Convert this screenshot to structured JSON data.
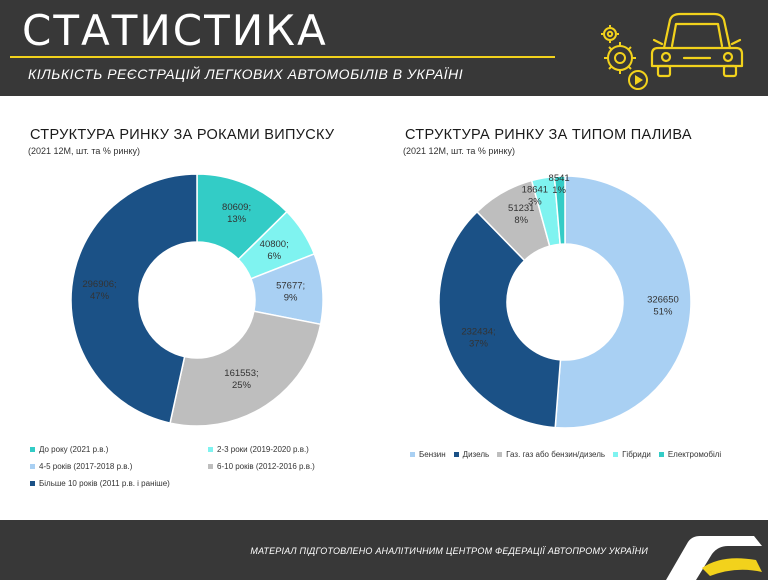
{
  "header": {
    "title": "СТАТИСТИКА",
    "subtitle": "КІЛЬКІСТЬ РЕЄСТРАЦІЙ ЛЕГКОВИХ АВТОМОБІЛІВ В УКРАЇНІ",
    "accent_color": "#f2d21c",
    "icons": [
      "car-icon",
      "gears-icon",
      "play-icon"
    ]
  },
  "footer": {
    "text": "МАТЕРІАЛ ПІДГОТОВЛЕНО АНАЛІТИЧНИМ ЦЕНТРОМ ФЕДЕРАЦІЇ АВТОПРОМУ УКРАЇНИ",
    "logo": "autoprom-logo"
  },
  "chart_data": [
    {
      "type": "pie",
      "donut": true,
      "title": "СТРУКТУРА РИНКУ ЗА РОКАМИ ВИПУСКУ",
      "subtitle": "(2021 12М, шт. та % ринку)",
      "legend_position": "bottom",
      "slices": [
        {
          "name": "До року (2021 р.в.)",
          "value": 80609,
          "percent": "13%",
          "label": "80609;\n13%",
          "color": "#33ccc6"
        },
        {
          "name": "2-3 роки (2019-2020 р.в.)",
          "value": 40800,
          "percent": "6%",
          "label": "40800;\n6%",
          "color": "#7ff3f0"
        },
        {
          "name": "4-5 років (2017-2018 р.в.)",
          "value": 57677,
          "percent": "9%",
          "label": "57677;\n9%",
          "color": "#a9d0f3"
        },
        {
          "name": "6-10 років (2012-2016 р.в.)",
          "value": 161553,
          "percent": "25%",
          "label": "161553;\n25%",
          "color": "#bebebe"
        },
        {
          "name": "Більше 10 років (2011 р.в. і раніше)",
          "value": 296906,
          "percent": "47%",
          "label": "296906;\n47%",
          "color": "#1b5186"
        }
      ]
    },
    {
      "type": "pie",
      "donut": true,
      "title": "СТРУКТУРА РИНКУ ЗА ТИПОМ ПАЛИВА",
      "subtitle": "(2021 12М, шт. та % ринку)",
      "legend_position": "bottom",
      "slices": [
        {
          "name": "Бензин",
          "value": 326650,
          "percent": "51%",
          "label": "326650\n51%",
          "color": "#a9d0f3"
        },
        {
          "name": "Дизель",
          "value": 232434,
          "percent": "37%",
          "label": "232434;\n37%",
          "color": "#1b5186"
        },
        {
          "name": "Газ. газ або бензин/дизель",
          "value": 51231,
          "percent": "8%",
          "label": "51231\n8%",
          "color": "#bebebe"
        },
        {
          "name": "Гібриди",
          "value": 18641,
          "percent": "3%",
          "label": "18641\n3%",
          "color": "#7ff3f0"
        },
        {
          "name": "Електромобілі",
          "value": 8541,
          "percent": "1%",
          "label": "8541\n1%",
          "color": "#33ccc6"
        }
      ]
    }
  ]
}
